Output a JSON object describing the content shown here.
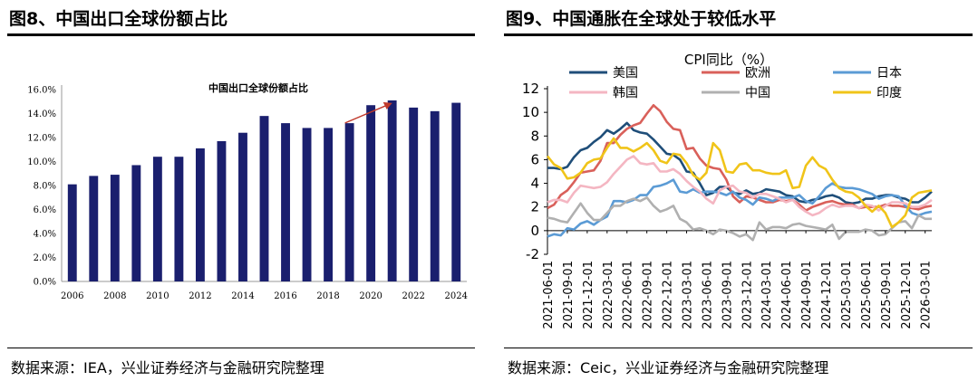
{
  "left": {
    "figure_title": "图8、中国出口全球份额占比",
    "source": "数据来源：IEA，兴业证券经济与金融研究院整理"
  },
  "right": {
    "figure_title": "图9、中国通胀在全球处于较低水平",
    "source": "数据来源：Ceic，兴业证券经济与金融研究院整理"
  },
  "chart_data": [
    {
      "type": "bar",
      "title": "中国出口全球份额占比",
      "categories": [
        "2006",
        "2007",
        "2008",
        "2009",
        "2010",
        "2011",
        "2012",
        "2013",
        "2014",
        "2015",
        "2016",
        "2017",
        "2018",
        "2019",
        "2020",
        "2021",
        "2022",
        "2023",
        "2024"
      ],
      "values": [
        8.1,
        8.8,
        8.9,
        9.7,
        10.4,
        10.4,
        11.1,
        11.7,
        12.4,
        13.8,
        13.2,
        12.8,
        12.8,
        13.2,
        14.7,
        15.1,
        14.5,
        14.2,
        14.9
      ],
      "x_tick_labels": [
        "2006",
        "2008",
        "2010",
        "2012",
        "2014",
        "2016",
        "2018",
        "2020",
        "2022",
        "2024"
      ],
      "y_tick_labels": [
        "0.0%",
        "2.0%",
        "4.0%",
        "6.0%",
        "8.0%",
        "10.0%",
        "12.0%",
        "14.0%",
        "16.0%"
      ],
      "ylim": [
        0,
        16
      ],
      "bar_color": "#1a1f6e",
      "annotation": "red arrow rising toward 2021 bar",
      "annotation_color": "#c0392b",
      "grid": false
    },
    {
      "type": "line",
      "title": "CPI同比（%）",
      "ylim": [
        -2,
        12
      ],
      "y_ticks": [
        -2,
        0,
        2,
        4,
        6,
        8,
        10,
        12
      ],
      "x": [
        "2021-06",
        "2021-07",
        "2021-08",
        "2021-09",
        "2021-10",
        "2021-11",
        "2021-12",
        "2022-01",
        "2022-02",
        "2022-03",
        "2022-04",
        "2022-05",
        "2022-06",
        "2022-07",
        "2022-08",
        "2022-09",
        "2022-10",
        "2022-11",
        "2022-12",
        "2023-01",
        "2023-02",
        "2023-03",
        "2023-04",
        "2023-05",
        "2023-06",
        "2023-07",
        "2023-08",
        "2023-09",
        "2023-10",
        "2023-11",
        "2023-12",
        "2024-01",
        "2024-02",
        "2024-03",
        "2024-04",
        "2024-05",
        "2024-06",
        "2024-07",
        "2024-08",
        "2024-09",
        "2024-10",
        "2024-11",
        "2024-12",
        "2025-01",
        "2025-02",
        "2025-03",
        "2025-04",
        "2025-05",
        "2025-06",
        "2025-07",
        "2025-08",
        "2025-09",
        "2025-10",
        "2025-11",
        "2025-12",
        "2026-01",
        "2026-02",
        "2026-03",
        "2026-04"
      ],
      "x_tick_labels": [
        "2021-06-01",
        "2021-09-01",
        "2021-12-01",
        "2022-03-01",
        "2022-06-01",
        "2022-09-01",
        "2022-12-01",
        "2023-03-01",
        "2023-06-01",
        "2023-09-01",
        "2023-12-01",
        "2024-03-01",
        "2024-06-01",
        "2024-09-01",
        "2024-12-01",
        "2025-03-01",
        "2025-06-01",
        "2025-09-01",
        "2025-12-01",
        "2026-03-01"
      ],
      "legend_position": "top, two rows",
      "series": [
        {
          "name": "美国",
          "color": "#1f4e79",
          "values": [
            5.3,
            5.3,
            5.2,
            5.4,
            6.2,
            6.8,
            7.0,
            7.5,
            7.9,
            8.5,
            8.2,
            8.6,
            9.1,
            8.5,
            8.3,
            8.2,
            7.7,
            7.1,
            6.5,
            6.4,
            6.0,
            5.0,
            4.9,
            4.0,
            3.0,
            3.2,
            3.7,
            3.7,
            3.2,
            3.1,
            3.4,
            3.1,
            3.2,
            3.5,
            3.4,
            3.3,
            3.0,
            2.9,
            2.5,
            2.4,
            2.6,
            2.7,
            2.9,
            3.0,
            2.8,
            2.4,
            2.3,
            2.4,
            2.7,
            2.7,
            2.9,
            3.0,
            3.0,
            2.8,
            2.7,
            2.4,
            2.4,
            2.8,
            3.3
          ]
        },
        {
          "name": "欧洲",
          "color": "#d9605a",
          "values": [
            1.9,
            2.2,
            3.0,
            3.4,
            4.1,
            4.9,
            5.0,
            5.1,
            5.9,
            7.4,
            7.4,
            8.1,
            8.6,
            8.9,
            9.1,
            9.9,
            10.6,
            10.1,
            9.2,
            8.6,
            8.5,
            6.9,
            7.0,
            6.1,
            5.5,
            5.3,
            5.2,
            4.3,
            2.9,
            2.4,
            2.9,
            2.8,
            2.6,
            2.4,
            2.4,
            2.6,
            2.5,
            2.6,
            2.2,
            1.7,
            2.0,
            2.2,
            2.4,
            2.5,
            2.3,
            2.2,
            2.2,
            1.9,
            2.0,
            2.0,
            2.0,
            2.2,
            2.1,
            2.1,
            2.0,
            1.9,
            1.8,
            2.0,
            2.1
          ]
        },
        {
          "name": "日本",
          "color": "#5b9bd5",
          "values": [
            -0.5,
            -0.3,
            -0.4,
            0.2,
            0.1,
            0.6,
            0.8,
            0.5,
            0.9,
            1.2,
            2.5,
            2.5,
            2.4,
            2.6,
            3.0,
            3.0,
            3.7,
            3.8,
            4.0,
            4.3,
            3.3,
            3.2,
            3.5,
            3.2,
            3.3,
            3.3,
            3.2,
            3.0,
            3.3,
            2.8,
            2.6,
            2.2,
            2.8,
            2.7,
            2.5,
            2.8,
            2.8,
            2.8,
            3.0,
            2.5,
            2.3,
            2.9,
            3.6,
            4.0,
            3.7,
            3.6,
            3.6,
            3.5,
            3.3,
            3.1,
            2.7,
            2.9,
            3.0,
            2.9,
            2.1,
            1.5,
            1.3,
            1.5,
            1.6
          ]
        },
        {
          "name": "韩国",
          "color": "#f4b6c2",
          "values": [
            2.4,
            2.6,
            2.6,
            2.4,
            3.2,
            3.8,
            3.7,
            3.6,
            3.7,
            4.1,
            4.8,
            5.4,
            6.0,
            6.3,
            5.7,
            5.6,
            5.7,
            5.0,
            5.0,
            5.2,
            4.8,
            4.2,
            3.7,
            3.3,
            2.7,
            2.3,
            3.4,
            3.7,
            3.8,
            3.3,
            3.2,
            2.8,
            3.1,
            3.1,
            2.9,
            2.7,
            2.4,
            2.6,
            2.0,
            1.6,
            1.3,
            1.5,
            1.9,
            2.2,
            2.0,
            2.1,
            2.1,
            1.9,
            2.2,
            2.1,
            1.7,
            2.1,
            2.4,
            2.4,
            2.3,
            2.0,
            2.0,
            2.2,
            2.6
          ]
        },
        {
          "name": "中国",
          "color": "#b0b0b0",
          "values": [
            1.1,
            1.0,
            0.8,
            0.7,
            1.5,
            2.3,
            1.5,
            0.9,
            0.9,
            1.5,
            2.1,
            2.1,
            2.5,
            2.7,
            2.5,
            2.8,
            2.1,
            1.6,
            1.8,
            2.1,
            1.0,
            0.7,
            0.1,
            0.2,
            0.0,
            -0.3,
            0.1,
            0.0,
            -0.2,
            -0.5,
            -0.3,
            -0.8,
            0.7,
            0.1,
            0.3,
            0.3,
            0.2,
            0.5,
            0.6,
            0.4,
            0.3,
            0.2,
            0.1,
            0.5,
            -0.7,
            -0.1,
            -0.1,
            -0.1,
            0.1,
            0.0,
            -0.4,
            -0.3,
            0.2,
            0.7,
            0.8,
            0.2,
            1.3,
            1.0,
            1.0
          ]
        },
        {
          "name": "印度",
          "color": "#f0c419",
          "values": [
            6.3,
            5.6,
            5.3,
            4.4,
            4.5,
            4.9,
            5.7,
            6.0,
            6.1,
            7.0,
            7.8,
            7.0,
            7.0,
            6.7,
            7.0,
            7.4,
            6.8,
            5.9,
            5.7,
            6.5,
            6.4,
            5.7,
            4.7,
            4.3,
            4.9,
            7.4,
            6.8,
            5.0,
            4.9,
            5.6,
            5.7,
            5.1,
            5.1,
            4.9,
            4.8,
            4.8,
            5.1,
            3.6,
            3.7,
            5.5,
            6.2,
            5.5,
            5.2,
            4.3,
            3.6,
            3.3,
            3.2,
            2.8,
            2.1,
            1.6,
            2.1,
            1.5,
            0.3,
            0.7,
            1.3,
            2.8,
            3.2,
            3.3,
            3.4
          ]
        }
      ],
      "grid": false
    }
  ]
}
